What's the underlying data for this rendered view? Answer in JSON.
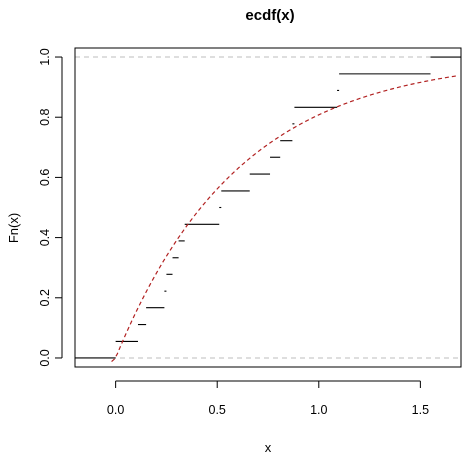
{
  "chart_data": {
    "type": "step",
    "title": "ecdf(x)",
    "xlabel": "x",
    "ylabel": "Fn(x)",
    "xlim": [
      -0.2,
      1.7
    ],
    "ylim": [
      -0.03,
      1.03
    ],
    "xticks": [
      0.0,
      0.5,
      1.0,
      1.5
    ],
    "xtick_labels": [
      "0.0",
      "0.5",
      "1.0",
      "1.5"
    ],
    "yticks": [
      0.0,
      0.2,
      0.4,
      0.6,
      0.8,
      1.0
    ],
    "ytick_labels": [
      "0.0",
      "0.2",
      "0.4",
      "0.6",
      "0.8",
      "1.0"
    ],
    "reference_lines": [
      0.0,
      1.0
    ],
    "grid": false,
    "series": [
      {
        "kind": "ecdf-steps",
        "color": "#000000",
        "steps": [
          {
            "x_start": -0.2,
            "x_end": 0.0,
            "y": 0.0
          },
          {
            "x_start": 0.0,
            "x_end": 0.11,
            "y": 0.055
          },
          {
            "x_start": 0.11,
            "x_end": 0.15,
            "y": 0.111
          },
          {
            "x_start": 0.15,
            "x_end": 0.24,
            "y": 0.167
          },
          {
            "x_start": 0.24,
            "x_end": 0.25,
            "y": 0.222
          },
          {
            "x_start": 0.25,
            "x_end": 0.28,
            "y": 0.278
          },
          {
            "x_start": 0.28,
            "x_end": 0.31,
            "y": 0.333
          },
          {
            "x_start": 0.31,
            "x_end": 0.34,
            "y": 0.389
          },
          {
            "x_start": 0.34,
            "x_end": 0.51,
            "y": 0.444
          },
          {
            "x_start": 0.51,
            "x_end": 0.52,
            "y": 0.5
          },
          {
            "x_start": 0.52,
            "x_end": 0.66,
            "y": 0.555
          },
          {
            "x_start": 0.66,
            "x_end": 0.76,
            "y": 0.611
          },
          {
            "x_start": 0.76,
            "x_end": 0.81,
            "y": 0.667
          },
          {
            "x_start": 0.81,
            "x_end": 0.87,
            "y": 0.722
          },
          {
            "x_start": 0.87,
            "x_end": 0.88,
            "y": 0.778
          },
          {
            "x_start": 0.88,
            "x_end": 1.09,
            "y": 0.833
          },
          {
            "x_start": 1.09,
            "x_end": 1.1,
            "y": 0.889
          },
          {
            "x_start": 1.1,
            "x_end": 1.55,
            "y": 0.944
          },
          {
            "x_start": 1.55,
            "x_end": 1.7,
            "y": 1.0
          }
        ]
      },
      {
        "kind": "theoretical-cdf",
        "distribution": "exponential",
        "rate": 1.65,
        "x_from": -0.02,
        "x_to": 1.68,
        "color": "#b22222",
        "style": "dashed"
      }
    ]
  }
}
